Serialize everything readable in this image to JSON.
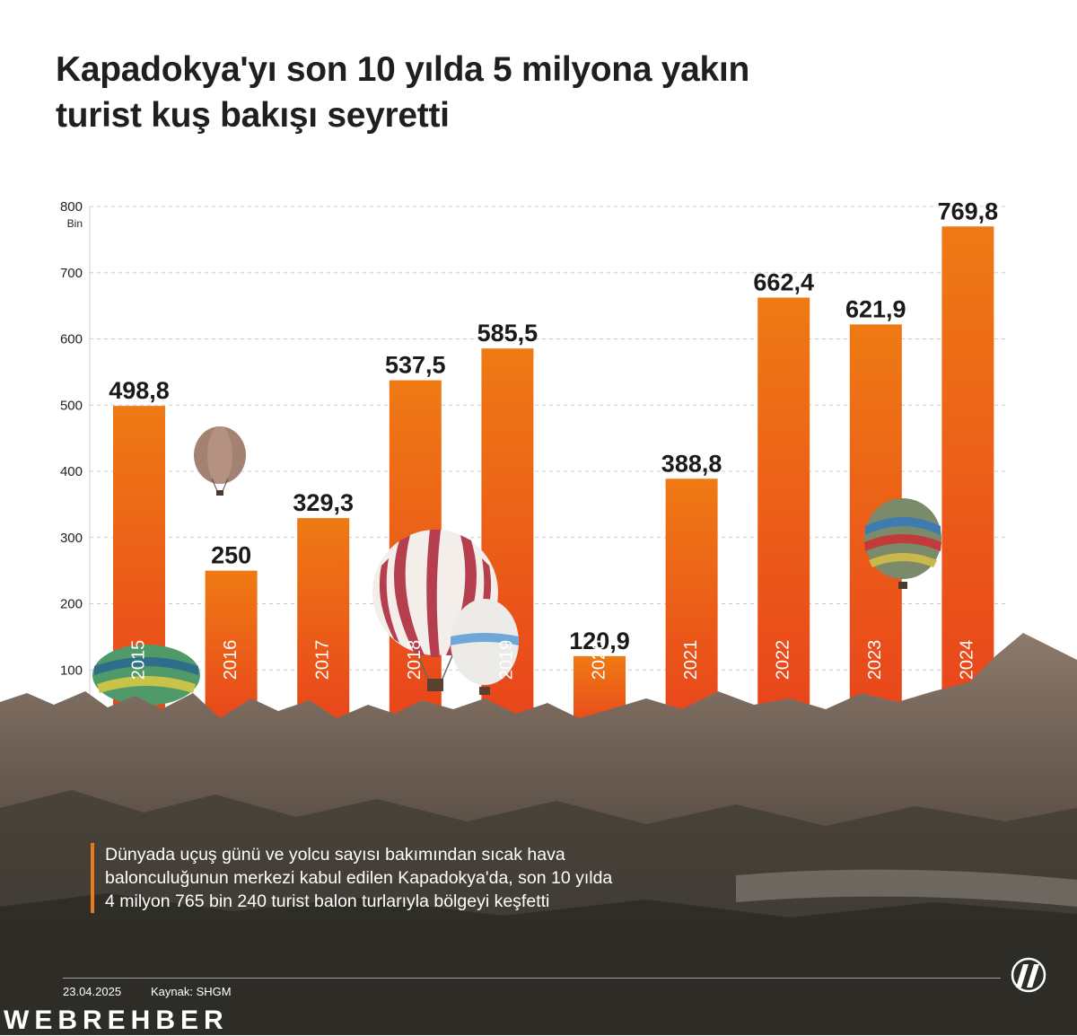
{
  "title": {
    "line1": "Kapadokya'yı son 10 yılda 5 milyona yakın",
    "line2": "turist kuş bakışı seyretti"
  },
  "chart_data": {
    "type": "bar",
    "categories": [
      "2015",
      "2016",
      "2017",
      "2018",
      "2019",
      "2020",
      "2021",
      "2022",
      "2023",
      "2024"
    ],
    "values": [
      498.8,
      250,
      329.3,
      537.5,
      585.5,
      120.9,
      388.8,
      662.4,
      621.9,
      769.8
    ],
    "value_labels": [
      "498,8",
      "250",
      "329,3",
      "537,5",
      "585,5",
      "120,9",
      "388,8",
      "662,4",
      "621,9",
      "769,8"
    ],
    "ylim": [
      0,
      800
    ],
    "yticks": [
      100,
      200,
      300,
      400,
      500,
      600,
      700,
      800
    ],
    "yunit": "Bin",
    "grid": true,
    "bar_color": "#ee7414"
  },
  "note": {
    "line1": "Dünyada uçuş günü ve yolcu sayısı bakımından sıcak hava",
    "line2": "balonculuğunun merkezi kabul edilen Kapadokya'da, son 10 yılda",
    "line3": "4 milyon 765 bin 240 turist balon turlarıyla bölgeyi keşfetti"
  },
  "footer": {
    "date": "23.04.2025",
    "source": "Kaynak: SHGM",
    "logo_text": "AA"
  },
  "watermark": "WEBREHBER",
  "colors": {
    "accent": "#ea7a1a",
    "text": "#1f1f1f"
  }
}
